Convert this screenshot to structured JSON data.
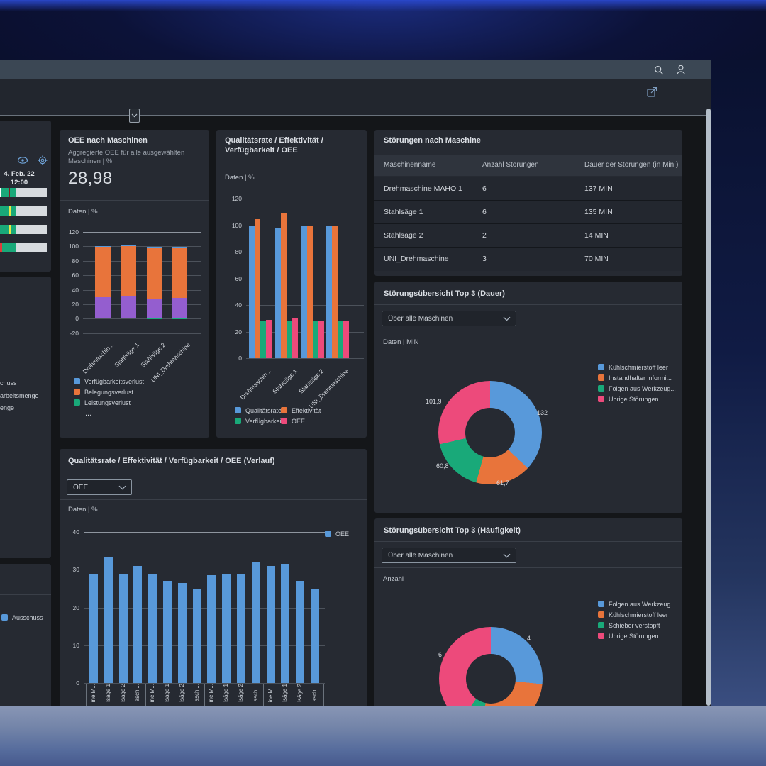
{
  "shell": {
    "search_icon": "search",
    "user_icon": "user",
    "share_icon": "open-share"
  },
  "tiles": {
    "status_left": {
      "date_line1": "4. Feb. 22",
      "date_line2": "12:00"
    },
    "left_middle": {
      "legend_fragments": [
        "chuss",
        "arbeitsmenge",
        "enge"
      ]
    },
    "left_bottom": {
      "legend": [
        {
          "label": "Ausschuss",
          "color": "#5899DA"
        }
      ]
    },
    "oee_aggregate": {
      "title": "OEE nach Maschinen",
      "subtitle": "Aggregierte OEE für alle ausgewählten Maschinen | %",
      "kpi": "28,98",
      "axis_unit": "Daten | %",
      "legend": [
        {
          "label": "Verfügbarkeitsverlust",
          "color": "#5899DA"
        },
        {
          "label": "Belegungsverlust",
          "color": "#E8743B"
        },
        {
          "label": "Leistungsverlust",
          "color": "#19A979"
        }
      ],
      "legend_more": "..."
    },
    "qevo": {
      "title": "Qualitätsrate / Effektivität / Verfügbarkeit / OEE",
      "axis_unit": "Daten | %",
      "legend": [
        {
          "label": "Qualitätsrate",
          "color": "#5899DA"
        },
        {
          "label": "Effektivität",
          "color": "#E8743B"
        },
        {
          "label": "Verfügbarkeit",
          "color": "#19A979"
        },
        {
          "label": "OEE",
          "color": "#ED4A7B"
        }
      ]
    },
    "fault_table": {
      "title": "Störungen nach Maschine",
      "columns": [
        "Maschinenname",
        "Anzahl Störungen",
        "Dauer der Störungen (in Min.)"
      ],
      "rows": [
        [
          "Drehmaschine MAHO 1",
          "6",
          "137 MIN"
        ],
        [
          "Stahlsäge 1",
          "6",
          "135 MIN"
        ],
        [
          "Stahlsäge 2",
          "2",
          "14 MIN"
        ],
        [
          "UNI_Drehmaschine",
          "3",
          "70 MIN"
        ]
      ]
    },
    "top3_duration": {
      "title": "Störungsübersicht Top 3 (Dauer)",
      "dropdown_value": "Über alle Maschinen",
      "axis_unit": "Daten | MIN",
      "legend": [
        {
          "label": "Kühlschmierstoff leer",
          "color": "#5899DA"
        },
        {
          "label": "Instandhalter informi...",
          "color": "#E8743B"
        },
        {
          "label": "Folgen aus Werkzeug...",
          "color": "#19A979"
        },
        {
          "label": "Übrige Störungen",
          "color": "#ED4A7B"
        }
      ]
    },
    "qevo_verlauf": {
      "title": "Qualitätsrate / Effektivität / Verfügbarkeit / OEE (Verlauf)",
      "dropdown_value": "OEE",
      "axis_unit": "Daten | %",
      "legend": [
        {
          "label": "OEE",
          "color": "#5899DA"
        }
      ]
    },
    "top3_frequency": {
      "title": "Störungsübersicht Top 3 (Häufigkeit)",
      "dropdown_value": "Über alle Maschinen",
      "axis_unit": "Anzahl",
      "legend": [
        {
          "label": "Folgen aus Werkzeug...",
          "color": "#5899DA"
        },
        {
          "label": "Kühlschmierstoff leer",
          "color": "#E8743B"
        },
        {
          "label": "Schieber verstopft",
          "color": "#19A979"
        },
        {
          "label": "Übrige Störungen",
          "color": "#ED4A7B"
        }
      ]
    }
  },
  "chart_data": [
    {
      "id": "oee_nach_maschinen",
      "type": "bar",
      "stacked": true,
      "title": "OEE nach Maschinen",
      "ylabel": "Daten | %",
      "ylim": [
        -20,
        120
      ],
      "yticks": [
        120,
        100,
        80,
        60,
        40,
        20,
        0,
        -20
      ],
      "categories": [
        "Drehmaschin...",
        "Stahlsäge 1",
        "Stahlsäge 2",
        "UNI_Drehmaschine"
      ],
      "series": [
        {
          "name": "Leistungsverlust",
          "color": "#19A979",
          "values": [
            1,
            1.5,
            0.5,
            0.5
          ]
        },
        {
          "name": "OEE",
          "color": "#945ECF",
          "values": [
            29,
            29.5,
            27.5,
            28.5
          ]
        },
        {
          "name": "Belegungsverlust",
          "color": "#E8743B",
          "values": [
            69,
            69.5,
            71,
            69.5
          ]
        },
        {
          "name": "Verfügbarkeitsverlust",
          "color": "#5899DA",
          "values": [
            1.5,
            1,
            0.5,
            0.5
          ]
        }
      ]
    },
    {
      "id": "qualitaet_effektivitaet",
      "type": "bar",
      "stacked": false,
      "title": "Qualitätsrate / Effektivität / Verfügbarkeit / OEE",
      "ylabel": "Daten | %",
      "ylim": [
        0,
        120
      ],
      "yticks": [
        120,
        100,
        80,
        60,
        40,
        20,
        0
      ],
      "categories": [
        "Drehmaschin...",
        "Stahlsäge 1",
        "Stahlsäge 2",
        "UNI_Drehmaschine"
      ],
      "series": [
        {
          "name": "Qualitätsrate",
          "color": "#5899DA",
          "values": [
            100,
            98,
            100,
            99
          ]
        },
        {
          "name": "Effektivität",
          "color": "#E8743B",
          "values": [
            104.5,
            109,
            99.5,
            100
          ]
        },
        {
          "name": "Verfügbarkeit",
          "color": "#19A979",
          "values": [
            28,
            28,
            28,
            28
          ]
        },
        {
          "name": "OEE",
          "color": "#ED4A7B",
          "values": [
            29,
            30,
            27.5,
            28
          ]
        }
      ]
    },
    {
      "id": "top3_dauer",
      "type": "pie",
      "title": "Störungsübersicht Top 3 (Dauer)",
      "unit": "MIN",
      "labels": [
        "Kühlschmierstoff leer",
        "Instandhalter informi...",
        "Folgen aus Werkzeug...",
        "Übrige Störungen"
      ],
      "values": [
        132,
        61.7,
        60.8,
        101.9
      ],
      "value_labels": [
        "132",
        "61,7",
        "60,8",
        "101,9"
      ],
      "colors": [
        "#5899DA",
        "#E8743B",
        "#19A979",
        "#ED4A7B"
      ]
    },
    {
      "id": "oee_verlauf",
      "type": "bar",
      "stacked": false,
      "title": "Qualitätsrate / Effektivität / Verfügbarkeit / OEE (Verlauf)",
      "ylabel": "Daten | %",
      "ylim": [
        0,
        40
      ],
      "yticks": [
        40,
        30,
        20,
        10,
        0
      ],
      "categories": [
        "ine M...",
        "lsäge 1",
        "lsäge 2",
        "aschi...",
        "ine M...",
        "lsäge 1",
        "lsäge 2",
        "aschi...",
        "ine M...",
        "lsäge 1",
        "lsäge 2",
        "aschi...",
        "ine M...",
        "lsäge 1",
        "lsäge 2",
        "aschi..."
      ],
      "series": [
        {
          "name": "OEE",
          "color": "#5899DA",
          "values": [
            29,
            33.5,
            29,
            31,
            29,
            27,
            26.5,
            25,
            28.5,
            29,
            29,
            32,
            31,
            31.5,
            27,
            25
          ]
        }
      ]
    },
    {
      "id": "top3_haeufigkeit",
      "type": "pie",
      "title": "Störungsübersicht Top 3 (Häufigkeit)",
      "unit": "Anzahl",
      "labels": [
        "Folgen aus Werkzeug...",
        "Kühlschmierstoff leer",
        "Schieber verstopft",
        "Übrige Störungen"
      ],
      "values": [
        4,
        4,
        1,
        6
      ],
      "value_labels": [
        "4",
        null,
        null,
        "6"
      ],
      "colors": [
        "#5899DA",
        "#E8743B",
        "#19A979",
        "#ED4A7B"
      ]
    },
    {
      "id": "status_timeline",
      "type": "timeline",
      "rows": [
        [
          [
            "#525DF4",
            2
          ],
          [
            "#945ECF",
            2
          ],
          [
            "#FFFFFF",
            1
          ],
          [
            "#19A979",
            11
          ],
          [
            "#7E2020",
            2
          ],
          [
            "#19A979",
            9
          ],
          [
            "#D7DBDF",
            43
          ]
        ],
        [
          [
            "#525DF4",
            2
          ],
          [
            "#1B3A7A",
            2
          ],
          [
            "#19A979",
            13
          ],
          [
            "#E8E84A",
            2
          ],
          [
            "#19A979",
            8
          ],
          [
            "#D7DBDF",
            43
          ]
        ],
        [
          [
            "#5899DA",
            2
          ],
          [
            "#19A979",
            15
          ],
          [
            "#E8E84A",
            2
          ],
          [
            "#19A979",
            8
          ],
          [
            "#D7DBDF",
            43
          ]
        ],
        [
          [
            "#525DF4",
            2
          ],
          [
            "#E03B3B",
            5
          ],
          [
            "#19A979",
            9
          ],
          [
            "#E8E84A",
            1
          ],
          [
            "#19A979",
            10
          ],
          [
            "#D7DBDF",
            43
          ]
        ]
      ]
    }
  ]
}
